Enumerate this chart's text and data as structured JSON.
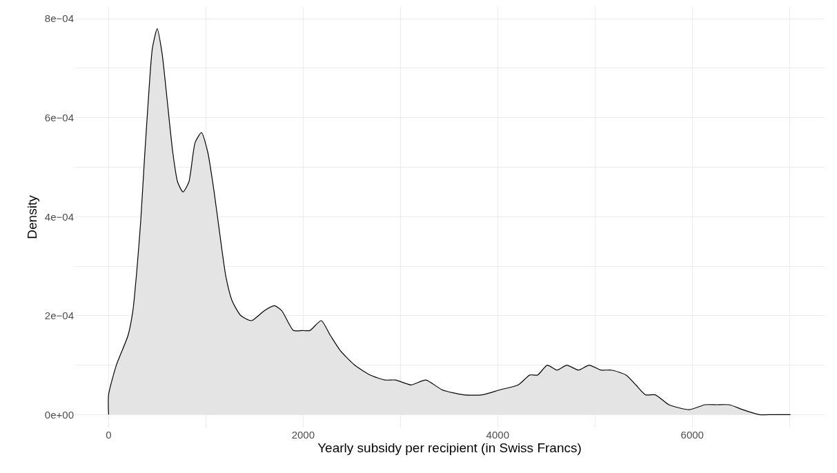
{
  "chart_data": {
    "type": "area",
    "xlabel": "Yearly subsidy per recipient (in Swiss Francs)",
    "ylabel": "Density",
    "x": [
      0,
      80,
      200,
      250,
      290,
      330,
      370,
      410,
      450,
      500,
      550,
      600,
      660,
      710,
      765,
      825,
      890,
      955,
      1020,
      1085,
      1140,
      1205,
      1270,
      1360,
      1470,
      1600,
      1705,
      1780,
      1900,
      1990,
      2070,
      2185,
      2280,
      2380,
      2530,
      2690,
      2840,
      2950,
      3110,
      3260,
      3430,
      3650,
      3840,
      4020,
      4210,
      4330,
      4410,
      4510,
      4610,
      4710,
      4830,
      4940,
      5060,
      5170,
      5320,
      5420,
      5520,
      5620,
      5760,
      5970,
      6130,
      6250,
      6380,
      6520,
      6690,
      6830,
      7010
    ],
    "series": [
      {
        "color": "#e4e4e4",
        "values": [
          4e-05,
          0.0001,
          0.00016,
          0.00021,
          0.00029,
          0.00039,
          0.00052,
          0.00064,
          0.00074,
          0.00078,
          0.00073,
          0.00064,
          0.00053,
          0.00047,
          0.00045,
          0.00047,
          0.00055,
          0.00057,
          0.00053,
          0.00045,
          0.00037,
          0.00028,
          0.00023,
          0.0002,
          0.00019,
          0.00021,
          0.00022,
          0.00021,
          0.00017,
          0.00017,
          0.00017,
          0.00019,
          0.00016,
          0.00013,
          0.0001,
          8e-05,
          7e-05,
          7e-05,
          6e-05,
          7e-05,
          5e-05,
          4e-05,
          4e-05,
          5e-05,
          6e-05,
          8e-05,
          8e-05,
          0.0001,
          9e-05,
          0.0001,
          9e-05,
          0.0001,
          9e-05,
          9e-05,
          8e-05,
          6e-05,
          4e-05,
          4e-05,
          2e-05,
          1e-05,
          2e-05,
          2e-05,
          2e-05,
          1e-05,
          0,
          0,
          0
        ]
      }
    ],
    "xlim": [
      -350,
      7360
    ],
    "ylim": [
      -2.6e-05,
      0.000824
    ],
    "xticks": [
      0,
      {
        "value": 1000,
        "label": null
      },
      2000,
      {
        "value": 3000,
        "label": null
      },
      4000,
      {
        "value": 5000,
        "label": null
      },
      6000,
      {
        "value": 7000,
        "label": null
      }
    ],
    "yticks": [
      {
        "value": 0,
        "label": "0e+00"
      },
      {
        "value": 0.0001,
        "label": null
      },
      {
        "value": 0.0002,
        "label": "2e−04"
      },
      {
        "value": 0.0003,
        "label": null
      },
      {
        "value": 0.0004,
        "label": "4e−04"
      },
      {
        "value": 0.0005,
        "label": null
      },
      {
        "value": 0.0006,
        "label": "6e−04"
      },
      {
        "value": 0.0007,
        "label": null
      },
      {
        "value": 0.0008,
        "label": "8e−04"
      }
    ],
    "grid": true
  }
}
